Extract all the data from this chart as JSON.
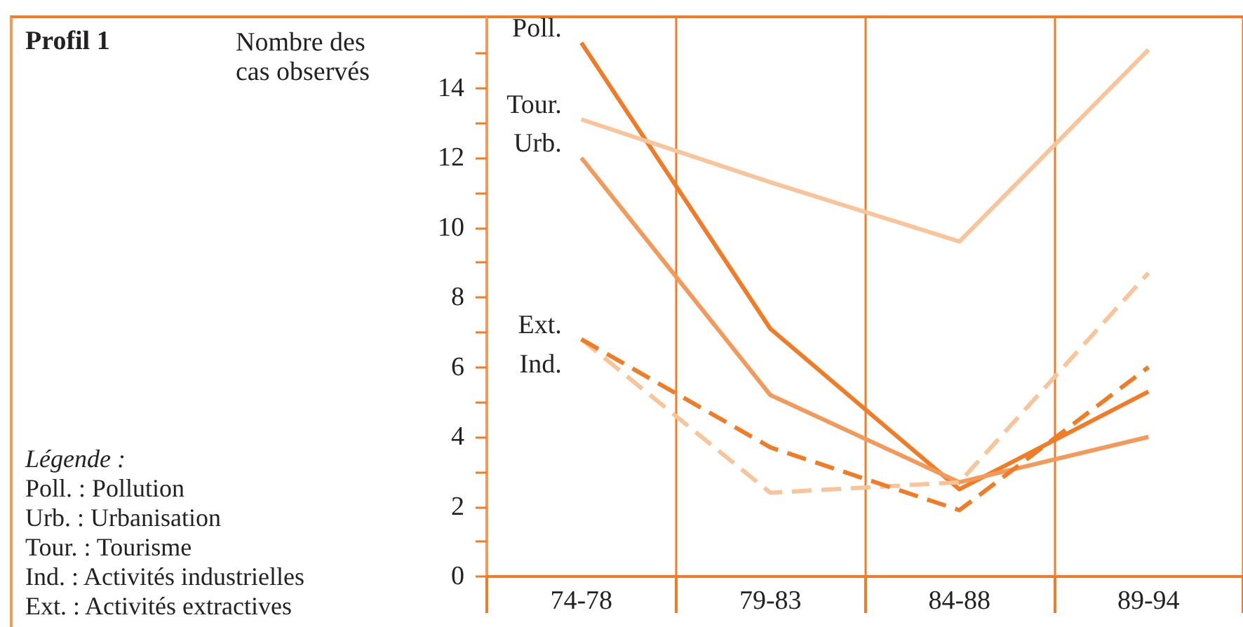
{
  "chart_data": {
    "type": "line",
    "title": "Profil 1",
    "ylabel": "Nombre des\ncas observés",
    "categories": [
      "74-78",
      "79-83",
      "84-88",
      "89-94"
    ],
    "series": [
      {
        "name": "Poll.",
        "color": "#f07c28",
        "line_style": "solid",
        "values": [
          15.3,
          7.1,
          2.5,
          5.3
        ]
      },
      {
        "name": "Tour.",
        "color": "#f9c49a",
        "line_style": "solid",
        "values": [
          13.1,
          11.3,
          9.6,
          15.1
        ]
      },
      {
        "name": "Urb.",
        "color": "#f39a5a",
        "line_style": "solid",
        "values": [
          12.0,
          5.2,
          2.7,
          4.0
        ]
      },
      {
        "name": "Ext.",
        "color": "#f9c49a",
        "line_style": "dashed",
        "values": [
          6.8,
          2.4,
          2.7,
          8.7
        ]
      },
      {
        "name": "Ind.",
        "color": "#f07c28",
        "line_style": "dashed",
        "values": [
          6.8,
          3.7,
          1.9,
          6.0
        ]
      }
    ],
    "ylim": [
      0,
      16
    ],
    "yticks": [
      0,
      {
        "value": 1,
        "label": null
      },
      2,
      {
        "value": 3,
        "label": null
      },
      4,
      {
        "value": 5,
        "label": null
      },
      6,
      {
        "value": 7,
        "label": null
      },
      8,
      {
        "value": 9,
        "label": null
      },
      10,
      {
        "value": 11,
        "label": null
      },
      12,
      {
        "value": 13,
        "label": null
      },
      14,
      {
        "value": 15,
        "label": null
      }
    ],
    "grid": "x",
    "legend": false,
    "marker": "none",
    "annotations": [
      "Légende :",
      "Poll. : Pollution",
      "Urb. : Urbanisation",
      "Tour. : Tourisme",
      "Ind. : Activités industrielles",
      "Ext. : Activités extractives"
    ]
  }
}
